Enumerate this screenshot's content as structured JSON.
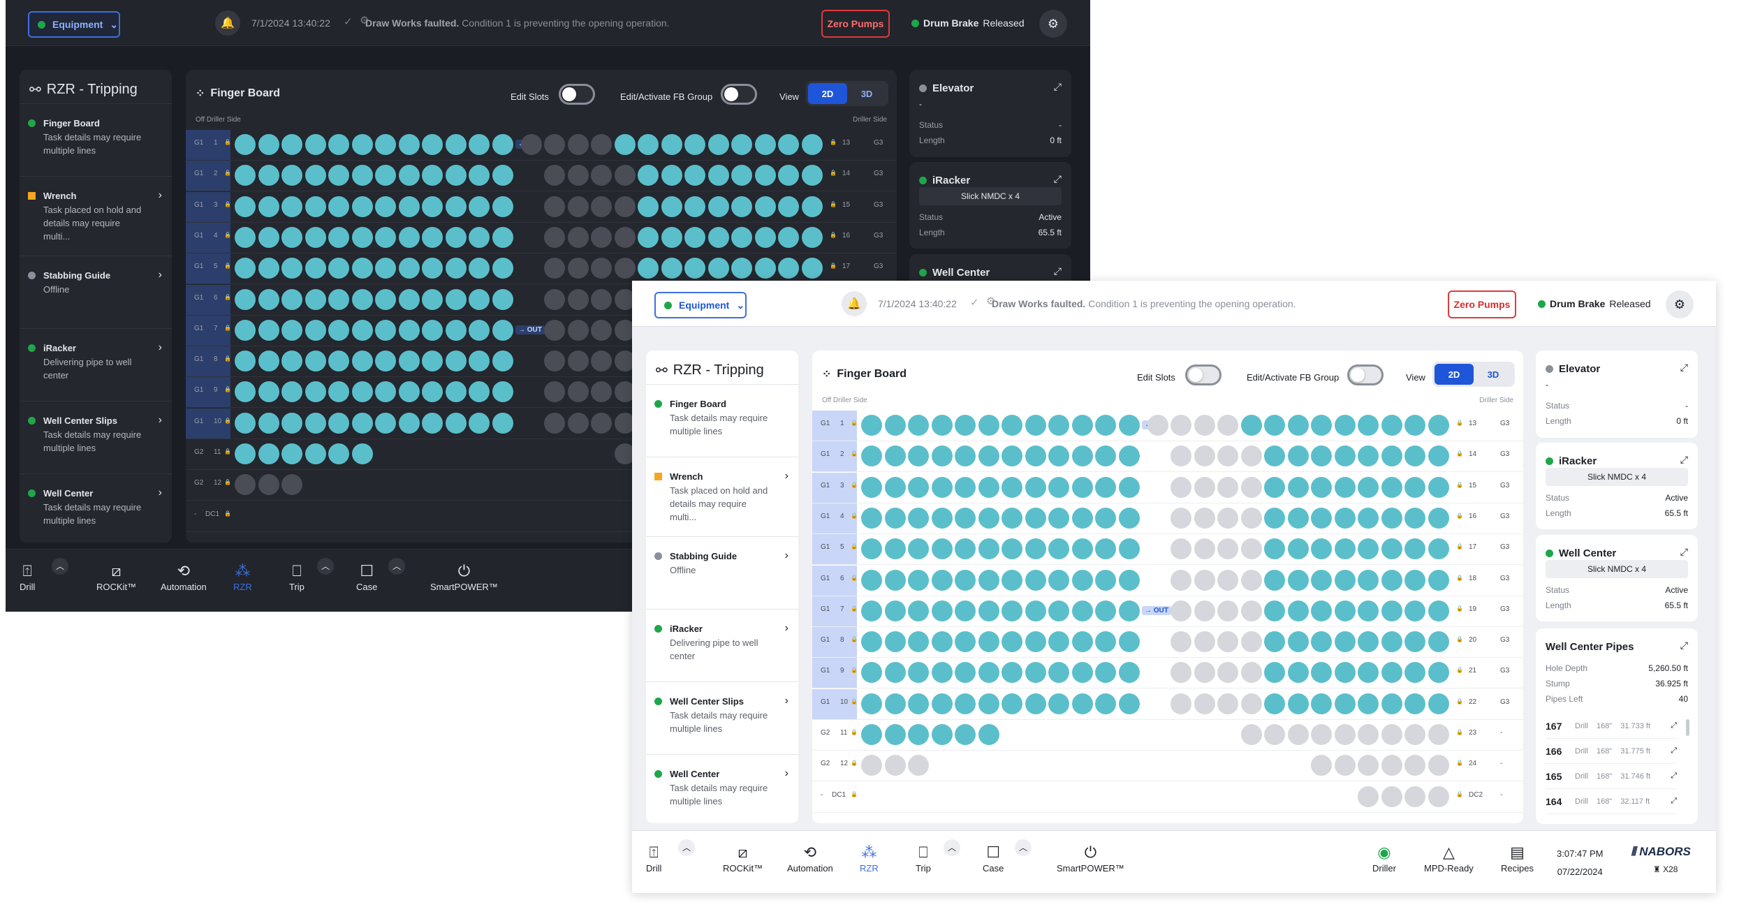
{
  "topbar": {
    "equipment": "Equipment",
    "timestamp": "7/1/2024  13:40:22",
    "alert_bold": "Draw Works faulted.",
    "alert_rest": " Condition 1 is preventing the opening operation.",
    "zero_pumps": "Zero Pumps",
    "drum_brake": "Drum Brake",
    "drum_state": "Released"
  },
  "left": {
    "title": "RZR - Tripping",
    "tasks": [
      {
        "name": "Finger Board",
        "desc": "Task details may require multiple lines",
        "status": "green"
      },
      {
        "name": "Wrench",
        "desc": "Task placed on hold and details may require multi...",
        "status": "orange"
      },
      {
        "name": "Stabbing Guide",
        "desc": "Offline",
        "status": "grey"
      },
      {
        "name": "iRacker",
        "desc": "Delivering pipe to well center",
        "status": "green"
      },
      {
        "name": "Well Center Slips",
        "desc": "Task details may require multiple lines",
        "status": "green"
      },
      {
        "name": "Well Center",
        "desc": "Task details may require multiple lines",
        "status": "green"
      }
    ]
  },
  "fingerboard": {
    "title": "Finger Board",
    "edit_slots": "Edit Slots",
    "edit_fb": "Edit/Activate FB Group",
    "view": "View",
    "v2d": "2D",
    "v3d": "3D",
    "off_side": "Off Driller Side",
    "driller_side": "Driller Side",
    "in_label": "← IN",
    "out_label": "→ OUT",
    "rows": [
      {
        "g": "G1",
        "n": "1",
        "left": 12,
        "rg": 4,
        "rt": 9,
        "rn": "13",
        "rlabel": "G3"
      },
      {
        "g": "G1",
        "n": "2",
        "left": 12,
        "rg": 4,
        "rt": 8,
        "rn": "14",
        "rlabel": "G3"
      },
      {
        "g": "G1",
        "n": "3",
        "left": 12,
        "rg": 4,
        "rt": 8,
        "rn": "15",
        "rlabel": "G3"
      },
      {
        "g": "G1",
        "n": "4",
        "left": 12,
        "rg": 4,
        "rt": 8,
        "rn": "16",
        "rlabel": "G3"
      },
      {
        "g": "G1",
        "n": "5",
        "left": 12,
        "rg": 4,
        "rt": 8,
        "rn": "17",
        "rlabel": "G3"
      },
      {
        "g": "G1",
        "n": "6",
        "left": 12,
        "rg": 4,
        "rt": 8,
        "rn": "18",
        "rlabel": "G3"
      },
      {
        "g": "G1",
        "n": "7",
        "left": 12,
        "rg": 4,
        "rt": 8,
        "rn": "19",
        "rlabel": "G3"
      },
      {
        "g": "G1",
        "n": "8",
        "left": 12,
        "rg": 4,
        "rt": 8,
        "rn": "20",
        "rlabel": "G3"
      },
      {
        "g": "G1",
        "n": "9",
        "left": 12,
        "rg": 4,
        "rt": 8,
        "rn": "21",
        "rlabel": "G3"
      },
      {
        "g": "G1",
        "n": "10",
        "left": 12,
        "rg": 4,
        "rt": 8,
        "rn": "22",
        "rlabel": "G3"
      },
      {
        "g": "G2",
        "n": "11",
        "left": 6,
        "rg": 9,
        "rt": 0,
        "rn": "23",
        "rlabel": "-"
      },
      {
        "g": "G2",
        "n": "12",
        "left": 0,
        "lgrey": 3,
        "rg": 6,
        "rt": 0,
        "rn": "24",
        "rlabel": "-"
      },
      {
        "g": "-",
        "n": "DC1",
        "left": 0,
        "rg": 4,
        "rt": 0,
        "rn": "DC2",
        "rlabel": "-"
      }
    ]
  },
  "right": {
    "elevator": {
      "title": "Elevator",
      "value": "-",
      "status_k": "Status",
      "status_v": "-",
      "length_k": "Length",
      "length_v": "0 ft"
    },
    "iracker": {
      "title": "iRacker",
      "chip": "Slick NMDC x 4",
      "status_k": "Status",
      "status_v": "Active",
      "length_k": "Length",
      "length_v": "65.5 ft"
    },
    "wellcenter": {
      "title": "Well Center",
      "chip": "Slick NMDC x 4",
      "status_k": "Status",
      "status_v": "Active",
      "length_k": "Length",
      "length_v": "65.5 ft"
    },
    "pipes": {
      "title": "Well Center Pipes",
      "hole_k": "Hole Depth",
      "hole_v": "5,260.50 ft",
      "stump_k": "Stump",
      "stump_v": "36.925 ft",
      "left_k": "Pipes Left",
      "left_v": "40",
      "list": [
        {
          "n": "167",
          "t": "Drill",
          "s": "168\"",
          "l": "31.733 ft"
        },
        {
          "n": "166",
          "t": "Drill",
          "s": "168\"",
          "l": "31.775 ft"
        },
        {
          "n": "165",
          "t": "Drill",
          "s": "168\"",
          "l": "31.746 ft"
        },
        {
          "n": "164",
          "t": "Drill",
          "s": "168\"",
          "l": "32.117 ft"
        }
      ]
    }
  },
  "bottom": {
    "drill": "Drill",
    "rockit": "ROCKit™",
    "automation": "Automation",
    "rzr": "RZR",
    "trip": "Trip",
    "case": "Case",
    "smartpower": "SmartPOWER™",
    "driller": "Driller",
    "mpd": "MPD-Ready",
    "recipes": "Recipes",
    "time": "3:07:47 PM",
    "date": "07/22/2024",
    "brand": "NABORS",
    "rig": "X28"
  },
  "colors": {
    "accent": "#1f55d8",
    "teal": "#5bbfcb",
    "alarm": "#e03a3a",
    "ok": "#1fa64a"
  }
}
